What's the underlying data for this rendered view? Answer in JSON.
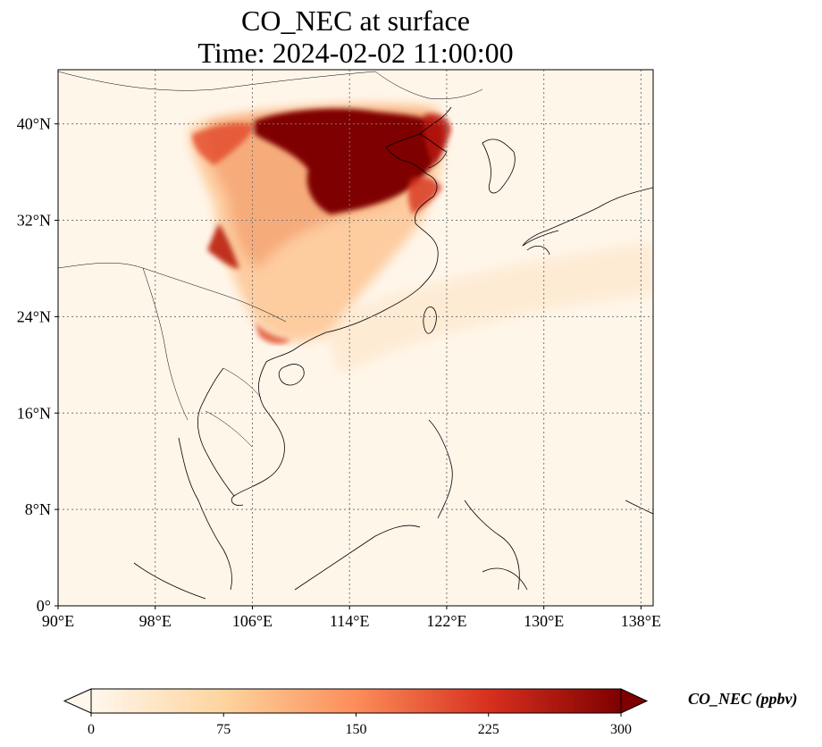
{
  "title": "CO_NEC at surface",
  "subtitle": "Time: 2024-02-02 11:00:00",
  "map": {
    "projection": "PlateCarree",
    "lon_range": [
      90,
      139
    ],
    "lat_range": [
      0,
      44.5
    ],
    "gridlines": "dotted",
    "lon_ticks": [
      {
        "value": 90,
        "label": "90°E"
      },
      {
        "value": 98,
        "label": "98°E"
      },
      {
        "value": 106,
        "label": "106°E"
      },
      {
        "value": 114,
        "label": "114°E"
      },
      {
        "value": 122,
        "label": "122°E"
      },
      {
        "value": 130,
        "label": "130°E"
      },
      {
        "value": 138,
        "label": "138°E"
      }
    ],
    "lat_ticks": [
      {
        "value": 0,
        "label": "0°"
      },
      {
        "value": 8,
        "label": "8°N"
      },
      {
        "value": 16,
        "label": "16°N"
      },
      {
        "value": 24,
        "label": "24°N"
      },
      {
        "value": 32,
        "label": "32°N"
      },
      {
        "value": 40,
        "label": "40°N"
      }
    ],
    "colormap": "OrRd"
  },
  "colorbar": {
    "label": "CO_NEC (ppbv)",
    "min": 0,
    "max": 300,
    "extend": "both",
    "ticks": [
      {
        "value": 0,
        "label": "0"
      },
      {
        "value": 75,
        "label": "75"
      },
      {
        "value": 150,
        "label": "150"
      },
      {
        "value": 225,
        "label": "225"
      },
      {
        "value": 300,
        "label": "300"
      }
    ],
    "colors": [
      "#fff7ec",
      "#fdd49e",
      "#fc8d59",
      "#d7301f",
      "#7f0000"
    ]
  }
}
